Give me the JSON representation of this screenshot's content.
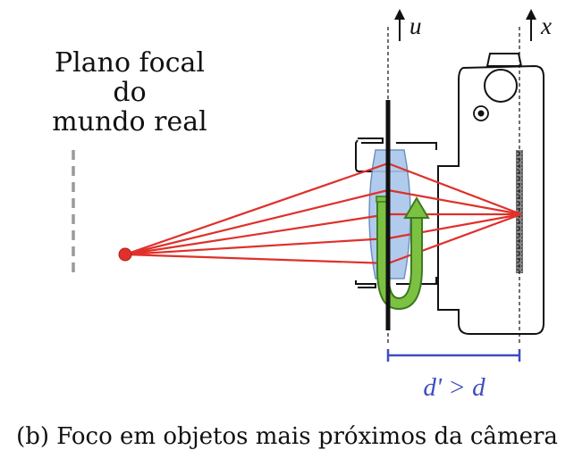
{
  "labels": {
    "focal_plane_line1": "Plano focal",
    "focal_plane_line2": "do",
    "focal_plane_line3": "mundo real",
    "axis_u": "u",
    "axis_x": "x",
    "distance": "d' > d"
  },
  "caption": "(b) Foco em objetos mais próximos da câmera",
  "colors": {
    "rays": "#e0302a",
    "object_point": "#e0302a",
    "lens_fill": "#a9c6ea",
    "focus_arrow": "#7cc142",
    "distance_annotation": "#3e4cc0",
    "outline": "#111111"
  },
  "icons": {
    "up_arrow_u": "up-arrow-icon",
    "up_arrow_x": "up-arrow-icon",
    "focus_rotation": "rotation-arrow-icon"
  }
}
